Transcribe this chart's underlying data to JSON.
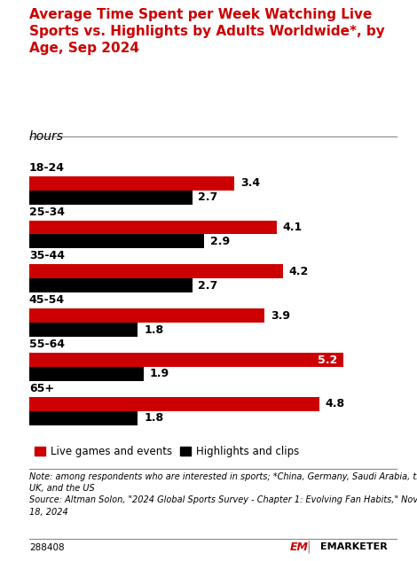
{
  "title": "Average Time Spent per Week Watching Live\nSports vs. Highlights by Adults Worldwide*, by\nAge, Sep 2024",
  "subtitle": "hours",
  "age_groups": [
    "18-24",
    "25-34",
    "35-44",
    "45-54",
    "55-64",
    "65+"
  ],
  "live_values": [
    3.4,
    4.1,
    4.2,
    3.9,
    5.2,
    4.8
  ],
  "highlights_values": [
    2.7,
    2.9,
    2.7,
    1.8,
    1.9,
    1.8
  ],
  "live_color": "#cc0000",
  "highlights_color": "#000000",
  "bar_height": 0.32,
  "xlim": [
    0,
    5.8
  ],
  "title_color": "#cc0000",
  "note_text": "Note: among respondents who are interested in sports; *China, Germany, Saudi Arabia, the\nUK, and the US\nSource: Altman Solon, \"2024 Global Sports Survey - Chapter 1: Evolving Fan Habits,\" Nov\n18, 2024",
  "footer_id": "288408",
  "legend_live": "Live games and events",
  "legend_highlights": "Highlights and clips",
  "background_color": "#ffffff",
  "white": "#ffffff"
}
